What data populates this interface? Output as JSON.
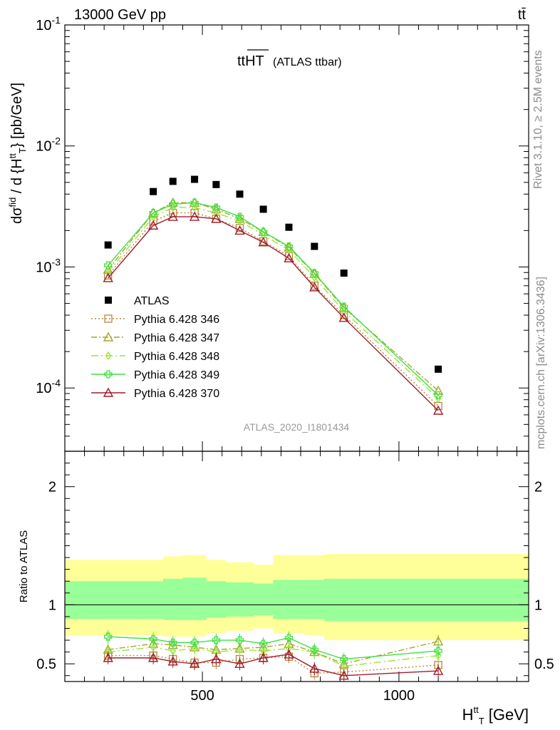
{
  "header": {
    "left": "13000 GeV pp",
    "right": "tt̄"
  },
  "side_labels": {
    "top": "Rivet 3.1.10, ≥ 2.5M events",
    "bottom": "mcplots.cern.ch [arXiv:1306.3436]"
  },
  "chart_data": {
    "type": "scatter",
    "title": "ttHT",
    "title_suffix": "(ATLAS ttbar)",
    "analysis_tag": "ATLAS_2020_I1801434",
    "ylabel": "dσ/d{H_T^tt} [pb/GeV]",
    "ylabel_parts": {
      "numer": "dσ",
      "numer_sup": "fid",
      "denom": "d {H",
      "denom_sup": "tt",
      "denom_sub": "T",
      "units": "} [pb/GeV]"
    },
    "xlabel_parts": {
      "base": "H",
      "sup": "tt",
      "sub": "T",
      "units": "[GeV]"
    },
    "ratio_ylabel": "Ratio to ATLAS",
    "xlim": [
      150,
      1330
    ],
    "ylim": [
      3e-05,
      0.1
    ],
    "yscale": "log",
    "ratio_ylim": [
      0.35,
      2.3
    ],
    "x_ticks": [
      500,
      1000
    ],
    "x_tick_labels": [
      "500",
      "1000"
    ],
    "y_tick_labels": [
      "10^-1",
      "10^-2",
      "10^-3",
      "10^-4"
    ],
    "y_tick_labels_parts": [
      {
        "base": "10",
        "exp": "-1"
      },
      {
        "base": "10",
        "exp": "-2"
      },
      {
        "base": "10",
        "exp": "-3"
      },
      {
        "base": "10",
        "exp": "-4"
      }
    ],
    "ratio_y_ticks": [
      0.5,
      1,
      2
    ],
    "ratio_y_tick_labels": [
      "0.5",
      "1",
      "2"
    ],
    "x": [
      260,
      375,
      425,
      480,
      535,
      595,
      655,
      720,
      785,
      860,
      1100
    ],
    "bin_edges": [
      150,
      320,
      400,
      450,
      510,
      560,
      630,
      680,
      760,
      810,
      910,
      1330
    ],
    "data": {
      "name": "ATLAS",
      "values": [
        0.00152,
        0.0042,
        0.0051,
        0.0053,
        0.0048,
        0.004,
        0.003,
        0.00213,
        0.00148,
        0.00089,
        0.000143
      ]
    },
    "bands": {
      "yellow_hi": [
        1.38,
        1.38,
        1.41,
        1.42,
        1.38,
        1.36,
        1.34,
        1.42,
        1.42,
        1.43,
        1.43
      ],
      "yellow_lo": [
        0.74,
        0.74,
        0.73,
        0.73,
        0.76,
        0.78,
        0.8,
        0.76,
        0.74,
        0.7,
        0.7
      ],
      "green_hi": [
        1.2,
        1.2,
        1.22,
        1.23,
        1.2,
        1.19,
        1.18,
        1.21,
        1.21,
        1.22,
        1.22
      ],
      "green_lo": [
        0.88,
        0.88,
        0.87,
        0.87,
        0.89,
        0.9,
        0.91,
        0.88,
        0.88,
        0.86,
        0.86
      ]
    },
    "series": [
      {
        "name": "Pythia 6.428 346",
        "color": "#b8863b",
        "dash": "2,3",
        "marker": "square",
        "values": [
          0.00085,
          0.0024,
          0.0028,
          0.0028,
          0.0025,
          0.0021,
          0.00163,
          0.00123,
          0.0007,
          0.0004,
          7.1e-05
        ],
        "ratio": [
          0.57,
          0.57,
          0.54,
          0.51,
          0.51,
          0.54,
          0.55,
          0.56,
          0.42,
          0.43,
          0.49
        ]
      },
      {
        "name": "Pythia 6.428 347",
        "color": "#a5a52a",
        "dash": "8,3,2,3",
        "marker": "triangle",
        "values": [
          0.00095,
          0.0028,
          0.0034,
          0.0034,
          0.003,
          0.0025,
          0.00195,
          0.00145,
          0.00088,
          0.00046,
          9.5e-05
        ],
        "ratio": [
          0.62,
          0.67,
          0.66,
          0.64,
          0.62,
          0.63,
          0.64,
          0.67,
          0.6,
          0.5,
          0.69
        ]
      },
      {
        "name": "Pythia 6.428 348",
        "color": "#99e633",
        "dash": "10,4,2,4",
        "marker": "diamond",
        "values": [
          0.0009,
          0.0026,
          0.0031,
          0.0031,
          0.0028,
          0.0024,
          0.00183,
          0.00138,
          0.00082,
          0.00043,
          8.2e-05
        ],
        "ratio": [
          0.6,
          0.64,
          0.61,
          0.63,
          0.6,
          0.62,
          0.61,
          0.63,
          0.6,
          0.48,
          0.57
        ]
      },
      {
        "name": "Pythia 6.428 349",
        "color": "#40e040",
        "dash": "",
        "marker": "plus",
        "values": [
          0.00103,
          0.0028,
          0.0033,
          0.0034,
          0.0031,
          0.0026,
          0.00195,
          0.00148,
          0.00089,
          0.00047,
          8.7e-05
        ],
        "ratio": [
          0.73,
          0.71,
          0.68,
          0.68,
          0.7,
          0.7,
          0.67,
          0.72,
          0.62,
          0.54,
          0.61
        ]
      },
      {
        "name": "Pythia 6.428 370",
        "color": "#a01c2c",
        "dash": "",
        "marker": "triangle",
        "values": [
          0.00081,
          0.0022,
          0.0026,
          0.0026,
          0.0025,
          0.002,
          0.0016,
          0.00118,
          0.00068,
          0.00038,
          6.5e-05
        ],
        "ratio": [
          0.55,
          0.55,
          0.52,
          0.5,
          0.54,
          0.5,
          0.55,
          0.58,
          0.46,
          0.4,
          0.44
        ]
      }
    ]
  }
}
